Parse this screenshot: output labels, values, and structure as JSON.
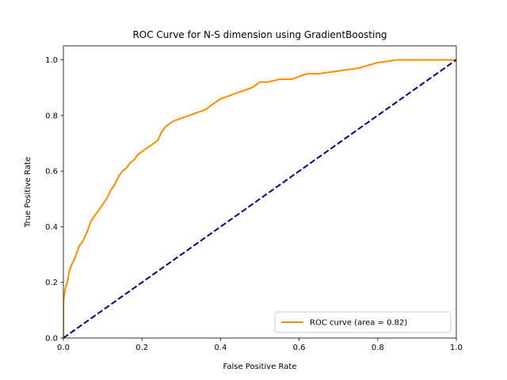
{
  "chart_data": {
    "type": "line",
    "title": "ROC Curve for N-S dimension using GradientBoosting",
    "xlabel": "False Positive Rate",
    "ylabel": "True Positive Rate",
    "xlim": [
      0.0,
      1.0
    ],
    "ylim": [
      0.0,
      1.05
    ],
    "xticks": [
      "0.0",
      "0.2",
      "0.4",
      "0.6",
      "0.8",
      "1.0"
    ],
    "xtick_values": [
      0.0,
      0.2,
      0.4,
      0.6,
      0.8,
      1.0
    ],
    "yticks": [
      "0.0",
      "0.2",
      "0.4",
      "0.6",
      "0.8",
      "1.0"
    ],
    "ytick_values": [
      0.0,
      0.2,
      0.4,
      0.6,
      0.8,
      1.0
    ],
    "grid": false,
    "legend_position": "lower right",
    "series": [
      {
        "name": "ROC curve (area = 0.82)",
        "color": "#ff8c00",
        "style": "solid",
        "x": [
          0.0,
          0.0,
          0.005,
          0.01,
          0.015,
          0.02,
          0.03,
          0.04,
          0.05,
          0.06,
          0.07,
          0.08,
          0.09,
          0.1,
          0.11,
          0.12,
          0.13,
          0.14,
          0.15,
          0.16,
          0.17,
          0.18,
          0.19,
          0.2,
          0.21,
          0.22,
          0.23,
          0.24,
          0.25,
          0.26,
          0.28,
          0.3,
          0.32,
          0.34,
          0.36,
          0.38,
          0.4,
          0.42,
          0.44,
          0.46,
          0.48,
          0.5,
          0.52,
          0.55,
          0.58,
          0.6,
          0.62,
          0.65,
          0.7,
          0.75,
          0.8,
          0.85,
          0.9,
          0.95,
          1.0
        ],
        "y": [
          0.0,
          0.13,
          0.18,
          0.2,
          0.24,
          0.26,
          0.29,
          0.33,
          0.35,
          0.38,
          0.42,
          0.44,
          0.46,
          0.48,
          0.5,
          0.53,
          0.55,
          0.58,
          0.6,
          0.61,
          0.63,
          0.64,
          0.66,
          0.67,
          0.68,
          0.69,
          0.7,
          0.71,
          0.74,
          0.76,
          0.78,
          0.79,
          0.8,
          0.81,
          0.82,
          0.84,
          0.86,
          0.87,
          0.88,
          0.89,
          0.9,
          0.92,
          0.92,
          0.93,
          0.93,
          0.94,
          0.95,
          0.95,
          0.96,
          0.97,
          0.99,
          1.0,
          1.0,
          1.0,
          1.0
        ]
      },
      {
        "name": "",
        "color": "#000080",
        "style": "dashed",
        "x": [
          0.0,
          1.0
        ],
        "y": [
          0.0,
          1.0
        ]
      }
    ]
  }
}
